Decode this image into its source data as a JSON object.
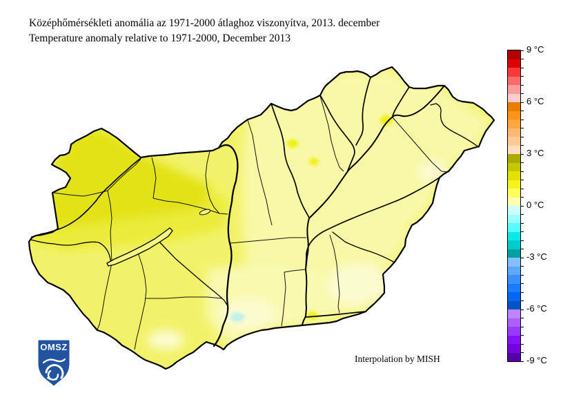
{
  "title": {
    "line1_hu": "Középhőmérsékleti anomália az 1971-2000 átlaghoz viszonyítva, 2013. december",
    "line2_en": "Temperature anomaly relative to 1971-2000, December 2013"
  },
  "map": {
    "credit": "Interpolation by MISH",
    "logo_text": "OMSZ"
  },
  "colorbar": {
    "unit": "°C",
    "max": 9,
    "min": -9,
    "degrees_per_segment": 0.5,
    "tick_labels": [
      "9 °C",
      "6 °C",
      "3 °C",
      "0 °C",
      "-3 °C",
      "-6 °C",
      "-9 °C"
    ],
    "segment_colors_top_to_bottom": [
      "#b40000",
      "#da0404",
      "#fb3939",
      "#fa6c6c",
      "#fb9d9d",
      "#ffcccc",
      "#e87f05",
      "#fd9418",
      "#ffa642",
      "#ffb86e",
      "#ffca96",
      "#ffdfc0",
      "#abab04",
      "#c6c605",
      "#e2e205",
      "#f4f41c",
      "#ffff60",
      "#ffffaf",
      "#ccffff",
      "#9cffff",
      "#58fcfc",
      "#0ce8e8",
      "#00cccc",
      "#01a0a0",
      "#84bffb",
      "#5fa7fb",
      "#3990fb",
      "#1b7cfb",
      "#0567ef",
      "#0353c4",
      "#bf84fb",
      "#ab5ffb",
      "#9939fb",
      "#8412f9",
      "#7204dd",
      "#5503a8"
    ]
  },
  "palette": {
    "base": "#f2f26a",
    "nw_high": "#e2e214",
    "nw_mid": "#ebeb3a",
    "east_pale": "#f8f8a6",
    "south_pale": "#f9f9b0",
    "cream": "#fbfbd0",
    "bright_spot": "#efef18",
    "cyan_spot": "#c2f0ec",
    "lake_fill": "#f6f684",
    "line": "#000000",
    "shield": "#2153a0"
  }
}
